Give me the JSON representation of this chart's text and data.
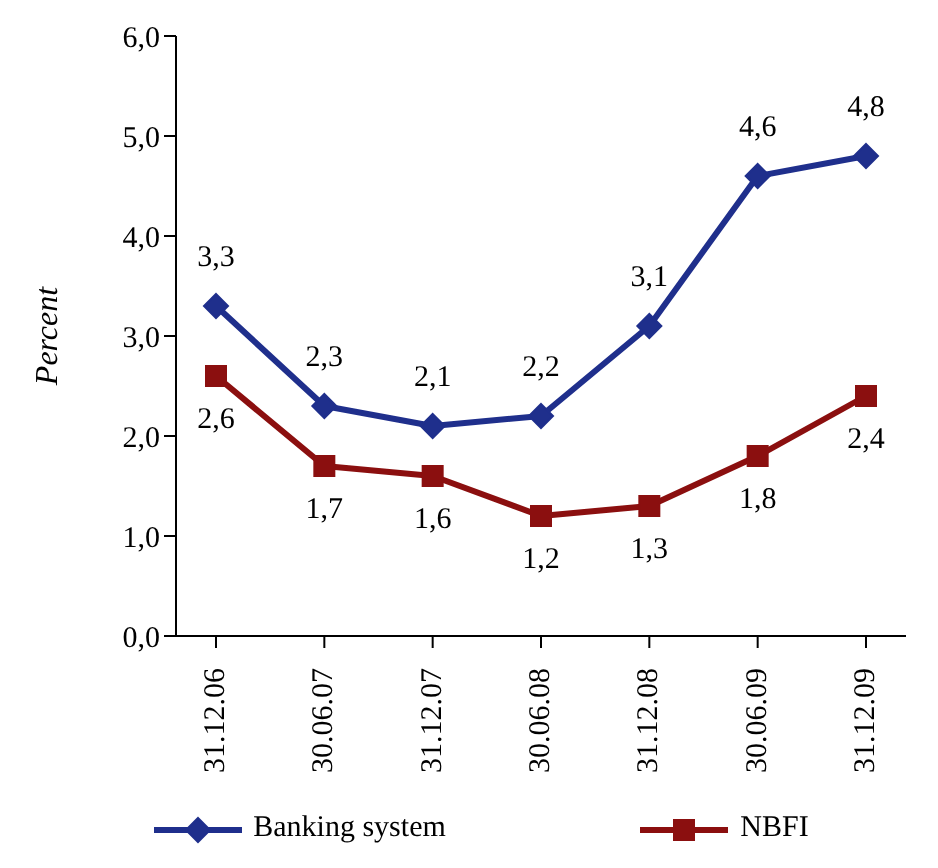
{
  "chart_data": {
    "type": "line",
    "ylabel": "Percent",
    "categories": [
      "31.12.06",
      "30.06.07",
      "31.12.07",
      "30.06.08",
      "31.12.08",
      "30.06.09",
      "31.12.09"
    ],
    "series": [
      {
        "name": "Banking system",
        "color": "#1f2f8c",
        "marker": "diamond",
        "values": [
          3.3,
          2.3,
          2.1,
          2.2,
          3.1,
          4.6,
          4.8
        ],
        "value_labels": [
          "3,3",
          "2,3",
          "2,1",
          "2,2",
          "3,1",
          "4,6",
          "4,8"
        ]
      },
      {
        "name": "NBFI",
        "color": "#8b0f0f",
        "marker": "square",
        "values": [
          2.6,
          1.7,
          1.6,
          1.2,
          1.3,
          1.8,
          2.4
        ],
        "value_labels": [
          "2,6",
          "1,7",
          "1,6",
          "1,2",
          "1,3",
          "1,8",
          "2,4"
        ]
      }
    ],
    "ylim": [
      0,
      6
    ],
    "yticks": [
      {
        "value": 0,
        "label": "0,0"
      },
      {
        "value": 1,
        "label": "1,0"
      },
      {
        "value": 2,
        "label": "2,0"
      },
      {
        "value": 3,
        "label": "3,0"
      },
      {
        "value": 4,
        "label": "4,0"
      },
      {
        "value": 5,
        "label": "5,0"
      },
      {
        "value": 6,
        "label": "6,0"
      }
    ],
    "grid": false,
    "legend": "bottom",
    "line_style": "solid"
  }
}
